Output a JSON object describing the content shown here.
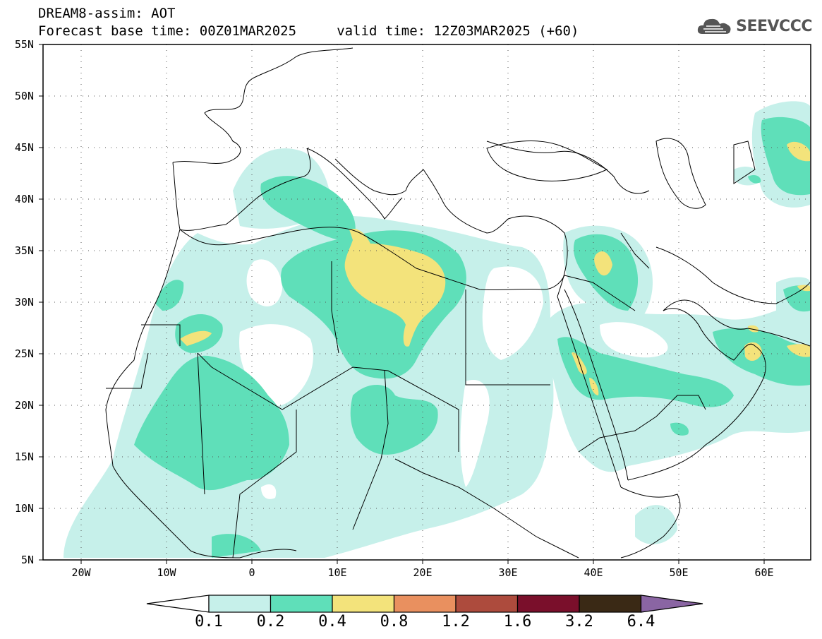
{
  "header": {
    "title_line1": "DREAM8-assim: AOT",
    "title_line2": "Forecast base time: 00Z01MAR2025     valid time: 12Z03MAR2025 (+60)",
    "brand": "SEEVCCC",
    "brand_icon": "cloud-logo-icon"
  },
  "map": {
    "variable": "AOT",
    "lon_range": [
      -25,
      65
    ],
    "lat_range": [
      5,
      55
    ],
    "lat_labels": [
      "55N",
      "50N",
      "45N",
      "40N",
      "35N",
      "30N",
      "25N",
      "20N",
      "15N",
      "10N",
      "5N"
    ],
    "lon_labels": [
      "20W",
      "10W",
      "0",
      "10E",
      "20E",
      "30E",
      "40E",
      "50E",
      "60E"
    ],
    "gridlines": "dotted"
  },
  "legend": {
    "levels": [
      "0.1",
      "0.2",
      "0.4",
      "0.8",
      "1.2",
      "1.6",
      "3.2",
      "6.4"
    ],
    "colors": [
      "#ffffff",
      "#c6f0ea",
      "#5fdfb9",
      "#f3e37b",
      "#e9905f",
      "#ad4b3d",
      "#7a0f2b",
      "#3a2915",
      "#8a65a3"
    ]
  }
}
